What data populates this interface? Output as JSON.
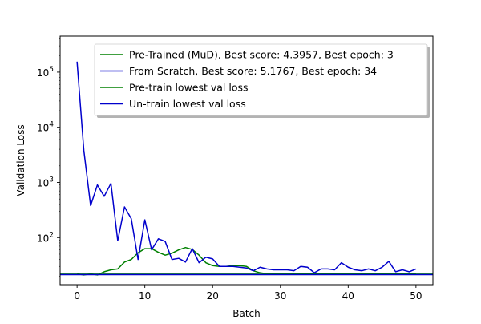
{
  "chart_data": {
    "type": "line",
    "title": "",
    "xlabel": "Batch",
    "ylabel": "Validation Loss",
    "yscale": "log",
    "xlim": [
      -2.5,
      52.5
    ],
    "ylim": [
      14,
      450000
    ],
    "grid": false,
    "legend_position": "top-right",
    "x_ticks": [
      0,
      10,
      20,
      30,
      40,
      50
    ],
    "x_tick_labels": [
      "0",
      "10",
      "20",
      "30",
      "40",
      "50"
    ],
    "y_ticks": [
      100,
      1000,
      10000,
      100000
    ],
    "y_tick_labels": [
      {
        "base": "10",
        "exp": "2"
      },
      {
        "base": "10",
        "exp": "3"
      },
      {
        "base": "10",
        "exp": "4"
      },
      {
        "base": "10",
        "exp": "5"
      }
    ],
    "series": [
      {
        "name": "Pre-Trained (MuD), Best score: 4.3957, Best epoch: 3",
        "color": "#008000",
        "kind": "line",
        "x": [
          0,
          1,
          2,
          3,
          4,
          5,
          6,
          7,
          8,
          9,
          10,
          11,
          12,
          13,
          14,
          15,
          16,
          17,
          18,
          19,
          20,
          21,
          22,
          23,
          24,
          25,
          26,
          27,
          28,
          29,
          30,
          31,
          32,
          33,
          34,
          35,
          36,
          37,
          38,
          39,
          40,
          41,
          42,
          43,
          44,
          45,
          46,
          47,
          48,
          49,
          50
        ],
        "values": [
          22,
          21,
          22,
          21,
          24,
          26,
          27,
          36,
          40,
          53,
          63,
          63,
          54,
          48,
          52,
          60,
          66,
          61,
          48,
          35,
          31,
          30,
          30,
          31,
          31,
          30,
          25,
          23,
          22,
          22,
          22,
          22,
          22,
          22,
          22,
          22,
          22,
          22,
          22,
          22,
          22,
          22,
          22,
          22,
          22,
          22,
          22,
          22,
          22,
          22,
          22
        ]
      },
      {
        "name": "From Scratch, Best score: 5.1767, Best epoch: 34",
        "color": "#0000cc",
        "kind": "line",
        "x": [
          0,
          1,
          2,
          3,
          4,
          5,
          6,
          7,
          8,
          9,
          10,
          11,
          12,
          13,
          14,
          15,
          16,
          17,
          18,
          19,
          20,
          21,
          22,
          23,
          24,
          25,
          26,
          27,
          28,
          29,
          30,
          31,
          32,
          33,
          34,
          35,
          36,
          37,
          38,
          39,
          40,
          41,
          42,
          43,
          44,
          45,
          46,
          47,
          48,
          49,
          50
        ],
        "values": [
          155000,
          3800,
          380,
          900,
          560,
          960,
          88,
          360,
          220,
          40,
          210,
          60,
          95,
          85,
          40,
          42,
          36,
          63,
          35,
          44,
          41,
          30,
          30,
          30,
          29,
          28,
          25,
          29,
          27,
          26,
          26,
          26,
          25,
          30,
          29,
          23,
          27,
          27,
          26,
          35,
          29,
          26,
          25,
          27,
          25,
          29,
          37,
          24,
          26,
          24,
          27
        ]
      },
      {
        "name": "Pre-train lowest val loss",
        "color": "#008000",
        "kind": "hline",
        "value": 21.7
      },
      {
        "name": "Un-train lowest val loss",
        "color": "#0000cc",
        "kind": "hline",
        "value": 21.3
      }
    ]
  }
}
